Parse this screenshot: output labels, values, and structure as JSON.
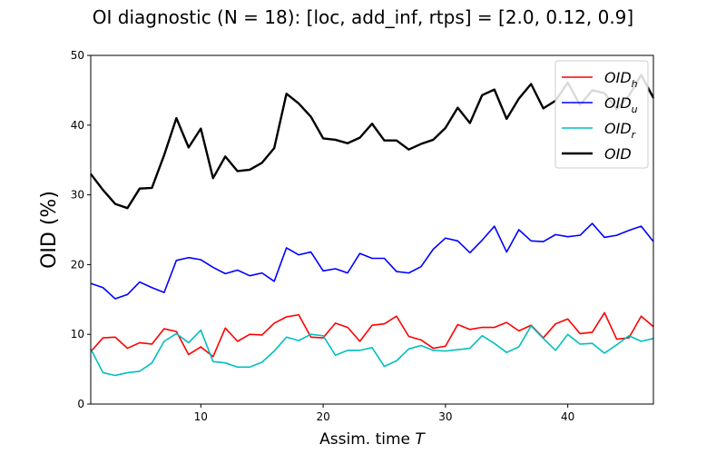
{
  "chart_data": {
    "type": "line",
    "title": "OI diagnostic  (N = 18): [loc, add_inf, rtps] = [2.0, 0.12, 0.9]",
    "xlabel": "Assim. time",
    "xlabel_var": "T",
    "ylabel": "OID (%)",
    "xlim": [
      1,
      47
    ],
    "ylim": [
      0,
      50
    ],
    "xticks": [
      10,
      20,
      30,
      40
    ],
    "yticks": [
      0,
      10,
      20,
      30,
      40,
      50
    ],
    "grid": false,
    "legend_position": "top-right",
    "x": [
      1,
      2,
      3,
      4,
      5,
      6,
      7,
      8,
      9,
      10,
      11,
      12,
      13,
      14,
      15,
      16,
      17,
      18,
      19,
      20,
      21,
      22,
      23,
      24,
      25,
      26,
      27,
      28,
      29,
      30,
      31,
      32,
      33,
      34,
      35,
      36,
      37,
      38,
      39,
      40,
      41,
      42,
      43,
      44,
      45,
      46,
      47
    ],
    "series": [
      {
        "name": "OID",
        "sub": "h",
        "color": "#ff0000",
        "width": 1.6,
        "values": [
          7.5,
          9.5,
          9.6,
          8.0,
          8.8,
          8.6,
          10.8,
          10.4,
          7.1,
          8.2,
          6.8,
          10.9,
          9.0,
          10.0,
          9.9,
          11.6,
          12.5,
          12.8,
          9.6,
          9.5,
          11.6,
          11.0,
          9.0,
          11.3,
          11.5,
          12.6,
          9.7,
          9.2,
          8.0,
          8.3,
          11.4,
          10.7,
          11.0,
          11.0,
          11.7,
          10.5,
          11.3,
          9.5,
          11.5,
          12.2,
          10.1,
          10.3,
          13.1,
          9.3,
          9.5,
          12.6,
          11.1
        ]
      },
      {
        "name": "OID",
        "sub": "u",
        "color": "#0000ff",
        "width": 1.6,
        "values": [
          17.3,
          16.7,
          15.1,
          15.7,
          17.5,
          16.7,
          16.0,
          20.6,
          21.0,
          20.7,
          19.6,
          18.7,
          19.2,
          18.4,
          18.8,
          17.6,
          22.4,
          21.4,
          21.8,
          19.1,
          19.4,
          18.8,
          21.6,
          20.9,
          20.9,
          19.0,
          18.8,
          19.7,
          22.2,
          23.8,
          23.4,
          21.7,
          23.5,
          25.5,
          21.8,
          25.0,
          23.4,
          23.3,
          24.3,
          24.0,
          24.2,
          25.9,
          23.9,
          24.2,
          24.9,
          25.5,
          23.3
        ]
      },
      {
        "name": "OID",
        "sub": "r",
        "color": "#00bfbf",
        "width": 1.6,
        "values": [
          7.9,
          4.5,
          4.1,
          4.5,
          4.7,
          5.9,
          9.0,
          10.1,
          8.8,
          10.6,
          6.1,
          5.9,
          5.3,
          5.3,
          6.0,
          7.6,
          9.6,
          9.1,
          10.0,
          9.8,
          7.0,
          7.7,
          7.7,
          8.1,
          5.4,
          6.2,
          7.9,
          8.4,
          7.7,
          7.6,
          7.8,
          8.0,
          9.8,
          8.7,
          7.4,
          8.2,
          11.2,
          9.4,
          7.7,
          10.0,
          8.6,
          8.7,
          7.3,
          8.5,
          9.8,
          9.0,
          9.4
        ]
      },
      {
        "name": "OID",
        "sub": "",
        "color": "#000000",
        "width": 2.4,
        "values": [
          33.0,
          30.7,
          28.7,
          28.1,
          30.9,
          31.0,
          35.7,
          41.0,
          36.8,
          39.5,
          32.4,
          35.5,
          33.4,
          33.6,
          34.6,
          36.7,
          44.5,
          43.1,
          41.2,
          38.1,
          37.9,
          37.4,
          38.2,
          40.2,
          37.8,
          37.8,
          36.5,
          37.3,
          37.9,
          39.6,
          42.5,
          40.3,
          44.3,
          45.1,
          40.9,
          43.8,
          45.9,
          42.4,
          43.5,
          46.1,
          42.9,
          45.0,
          44.6,
          42.3,
          44.2,
          47.2,
          43.9
        ]
      }
    ]
  }
}
